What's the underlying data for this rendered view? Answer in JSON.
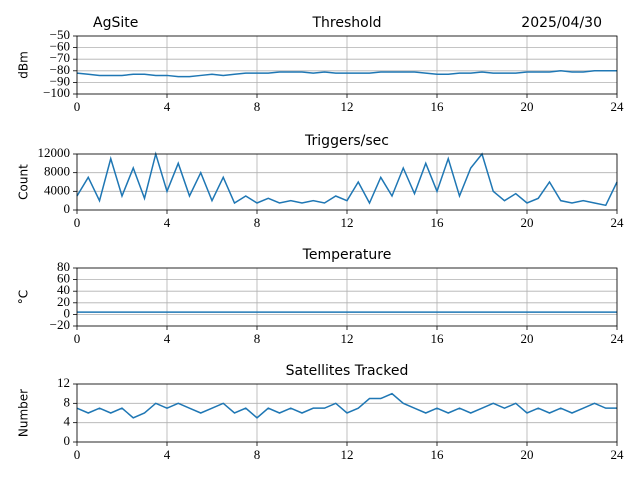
{
  "chart_data": [
    {
      "type": "line",
      "title": "Threshold",
      "left_title": "AgSite",
      "right_title": "2025/04/30",
      "ylabel": "dBm",
      "color": "#1f77b4",
      "grid": true,
      "xlim": [
        0,
        24
      ],
      "xticks": [
        0,
        4,
        8,
        12,
        16,
        20,
        24
      ],
      "ylim": [
        -100,
        -50
      ],
      "yticks": [
        {
          "value": -100,
          "label": "−100"
        },
        {
          "value": -90,
          "label": "−90"
        },
        {
          "value": -80,
          "label": "−80"
        },
        {
          "value": -70,
          "label": "−70"
        },
        {
          "value": -60,
          "label": "−60"
        },
        {
          "value": -50,
          "label": "−50"
        }
      ],
      "x": [
        0,
        0.5,
        1,
        1.5,
        2,
        2.5,
        3,
        3.5,
        4,
        4.5,
        5,
        5.5,
        6,
        6.5,
        7,
        7.5,
        8,
        8.5,
        9,
        9.5,
        10,
        10.5,
        11,
        11.5,
        12,
        12.5,
        13,
        13.5,
        14,
        14.5,
        15,
        15.5,
        16,
        16.5,
        17,
        17.5,
        18,
        18.5,
        19,
        19.5,
        20,
        20.5,
        21,
        21.5,
        22,
        22.5,
        23,
        23.5,
        24
      ],
      "values": [
        -82,
        -83,
        -84,
        -84,
        -84,
        -83,
        -83,
        -84,
        -84,
        -85,
        -85,
        -84,
        -83,
        -84,
        -83,
        -82,
        -82,
        -82,
        -81,
        -81,
        -81,
        -82,
        -81,
        -82,
        -82,
        -82,
        -82,
        -81,
        -81,
        -81,
        -81,
        -82,
        -83,
        -83,
        -82,
        -82,
        -81,
        -82,
        -82,
        -82,
        -81,
        -81,
        -81,
        -80,
        -81,
        -81,
        -80,
        -80,
        -80
      ]
    },
    {
      "type": "line",
      "title": "Triggers/sec",
      "ylabel": "Count",
      "color": "#1f77b4",
      "grid": true,
      "xlim": [
        0,
        24
      ],
      "xticks": [
        0,
        4,
        8,
        12,
        16,
        20,
        24
      ],
      "ylim": [
        0,
        12000
      ],
      "yticks": [
        0,
        4000,
        8000,
        12000
      ],
      "x": [
        0,
        0.5,
        1,
        1.5,
        2,
        2.5,
        3,
        3.5,
        4,
        4.5,
        5,
        5.5,
        6,
        6.5,
        7,
        7.5,
        8,
        8.5,
        9,
        9.5,
        10,
        10.5,
        11,
        11.5,
        12,
        12.5,
        13,
        13.5,
        14,
        14.5,
        15,
        15.5,
        16,
        16.5,
        17,
        17.5,
        18,
        18.5,
        19,
        19.5,
        20,
        20.5,
        21,
        21.5,
        22,
        22.5,
        23,
        23.5,
        24
      ],
      "values": [
        3000,
        7000,
        2000,
        11000,
        3000,
        9000,
        2500,
        12000,
        4000,
        10000,
        3000,
        8000,
        2000,
        7000,
        1500,
        3000,
        1500,
        2500,
        1500,
        2000,
        1500,
        2000,
        1500,
        3000,
        2000,
        6000,
        1500,
        7000,
        3000,
        9000,
        3500,
        10000,
        4000,
        11000,
        3000,
        9000,
        12000,
        4000,
        2000,
        3500,
        1500,
        2500,
        6000,
        2000,
        1500,
        2000,
        1500,
        1000,
        6000
      ]
    },
    {
      "type": "line",
      "title": "Temperature",
      "ylabel": "°C",
      "color": "#1f77b4",
      "grid": true,
      "xlim": [
        0,
        24
      ],
      "xticks": [
        0,
        4,
        8,
        12,
        16,
        20,
        24
      ],
      "ylim": [
        -20,
        80
      ],
      "yticks": [
        {
          "value": -20,
          "label": "−20"
        },
        0,
        20,
        40,
        60,
        80
      ],
      "x": [
        0,
        24
      ],
      "values": [
        4,
        4
      ]
    },
    {
      "type": "line",
      "title": "Satellites Tracked",
      "ylabel": "Number",
      "color": "#1f77b4",
      "grid": true,
      "xlim": [
        0,
        24
      ],
      "xticks": [
        0,
        4,
        8,
        12,
        16,
        20,
        24
      ],
      "ylim": [
        0,
        12
      ],
      "yticks": [
        0,
        4,
        8,
        12
      ],
      "x": [
        0,
        0.5,
        1,
        1.5,
        2,
        2.5,
        3,
        3.5,
        4,
        4.5,
        5,
        5.5,
        6,
        6.5,
        7,
        7.5,
        8,
        8.5,
        9,
        9.5,
        10,
        10.5,
        11,
        11.5,
        12,
        12.5,
        13,
        13.5,
        14,
        14.5,
        15,
        15.5,
        16,
        16.5,
        17,
        17.5,
        18,
        18.5,
        19,
        19.5,
        20,
        20.5,
        21,
        21.5,
        22,
        22.5,
        23,
        23.5,
        24
      ],
      "values": [
        7,
        6,
        7,
        6,
        7,
        5,
        6,
        8,
        7,
        8,
        7,
        6,
        7,
        8,
        6,
        7,
        5,
        7,
        6,
        7,
        6,
        7,
        7,
        8,
        6,
        7,
        9,
        9,
        10,
        8,
        7,
        6,
        7,
        6,
        7,
        6,
        7,
        8,
        7,
        8,
        6,
        7,
        6,
        7,
        6,
        7,
        8,
        7,
        7
      ]
    }
  ]
}
